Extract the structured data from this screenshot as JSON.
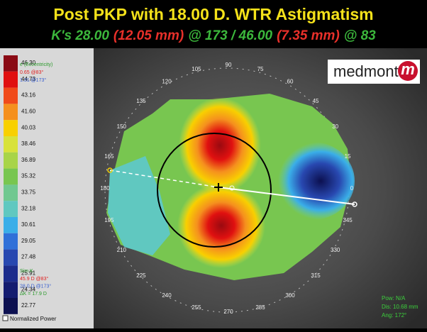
{
  "title": "Post PKP with 18.00 D. WTR Astigmatism",
  "subtitle": [
    {
      "text": "K's 28.00",
      "color": "#3cb83c"
    },
    {
      "text": "(12.05 mm)",
      "color": "#e8302a"
    },
    {
      "text": "@ 173 / 46.00",
      "color": "#3cb83c"
    },
    {
      "text": "(7.35 mm)",
      "color": "#e8302a"
    },
    {
      "text": "@ 83",
      "color": "#3cb83c"
    }
  ],
  "scale": [
    {
      "label": "46.30",
      "color": "#8a0a14"
    },
    {
      "label": "44.73",
      "color": "#e01010"
    },
    {
      "label": "43.16",
      "color": "#f04a1a"
    },
    {
      "label": "41.60",
      "color": "#f5901e"
    },
    {
      "label": "40.03",
      "color": "#f8d000"
    },
    {
      "label": "38.46",
      "color": "#d8e23a"
    },
    {
      "label": "36.89",
      "color": "#a8d448"
    },
    {
      "label": "35.32",
      "color": "#78c650"
    },
    {
      "label": "33.75",
      "color": "#70c890"
    },
    {
      "label": "32.18",
      "color": "#60c8c0"
    },
    {
      "label": "30.61",
      "color": "#3aaee8"
    },
    {
      "label": "29.05",
      "color": "#3070d8"
    },
    {
      "label": "27.48",
      "color": "#2848b0"
    },
    {
      "label": "25.91",
      "color": "#1c2c8c"
    },
    {
      "label": "24.34",
      "color": "#141c70"
    },
    {
      "label": "22.77",
      "color": "#0c1050"
    }
  ],
  "eccentricity": {
    "label": "e (Eccentricity)",
    "lines": [
      {
        "text": "0.65 @83°",
        "color": "#e02020"
      },
      {
        "text": "1.31 @173°",
        "color": "#3a60d0"
      }
    ]
  },
  "sim_k": {
    "label": "Sim K",
    "lines": [
      {
        "text": "45.9 D @83°",
        "color": "#e02020"
      },
      {
        "text": "28.0 D @173°",
        "color": "#3a60d0"
      },
      {
        "text": "ΔK = 17.9 D",
        "color": "#2a9a2a"
      }
    ]
  },
  "normalized_power": "Normalized Power",
  "logo": "medmont",
  "logo_mark": "m",
  "angles": [
    "0",
    "15",
    "30",
    "45",
    "60",
    "75",
    "90",
    "105",
    "120",
    "135",
    "150",
    "165",
    "180",
    "195",
    "210",
    "225",
    "240",
    "255",
    "270",
    "285",
    "300",
    "315",
    "330",
    "345"
  ],
  "cursor": [
    "Pow: N/A",
    "Dis: 10.68 mm",
    "Ang: 172°"
  ]
}
